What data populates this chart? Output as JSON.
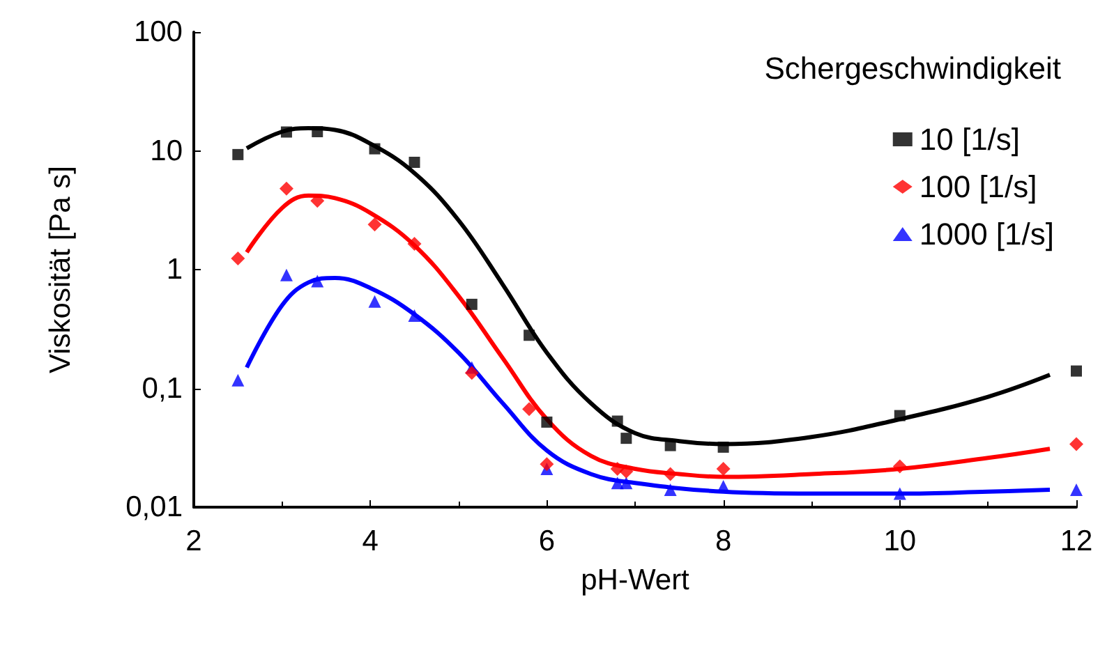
{
  "chart_data": {
    "type": "scatter",
    "xlabel": "pH-Wert",
    "ylabel": "Viskosität [Pa s]",
    "legend_title": "Schergeschwindigkeit",
    "legend": "top right",
    "log": "y",
    "grid": false,
    "xlim": [
      2,
      12
    ],
    "xticks": [
      2,
      4,
      6,
      8,
      10,
      12
    ],
    "ylim": [
      0.01,
      100
    ],
    "yticks": [
      {
        "value": 0.01,
        "label": "0,01"
      },
      {
        "value": 0.1,
        "label": "0,1"
      },
      {
        "value": 1,
        "label": "1"
      },
      {
        "value": 10,
        "label": "10"
      },
      {
        "value": 100,
        "label": "100"
      }
    ],
    "series": [
      {
        "name": "10 [1/s]",
        "color": "#000000",
        "marker": "square",
        "x": [
          2.5,
          3.05,
          3.4,
          4.05,
          4.5,
          5.15,
          5.8,
          6,
          6.8,
          6.9,
          7.4,
          8,
          10,
          12
        ],
        "values": [
          9.3,
          14.4,
          14.5,
          10.4,
          8,
          0.51,
          0.28,
          0.052,
          0.053,
          0.038,
          0.033,
          0.032,
          0.059,
          0.14
        ]
      },
      {
        "name": "100 [1/s]",
        "color": "#ff0000",
        "marker": "diamond",
        "x": [
          2.5,
          3.05,
          3.4,
          4.05,
          4.5,
          5.15,
          5.8,
          6,
          6.8,
          6.9,
          7.4,
          8,
          10,
          12
        ],
        "values": [
          1.24,
          4.8,
          3.8,
          2.4,
          1.65,
          0.135,
          0.067,
          0.023,
          0.021,
          0.02,
          0.019,
          0.021,
          0.022,
          0.034
        ]
      },
      {
        "name": "1000 [1/s]",
        "color": "#0000ff",
        "marker": "triangle",
        "x": [
          2.5,
          3.05,
          3.4,
          4.05,
          4.5,
          5.15,
          6,
          6.8,
          6.9,
          7.4,
          8,
          10,
          12
        ],
        "values": [
          0.117,
          0.9,
          0.8,
          0.54,
          0.41,
          0.15,
          0.021,
          0.016,
          0.016,
          0.014,
          0.015,
          0.013,
          0.014
        ]
      },
      {
        "type": "line",
        "color": "#000000",
        "marker": "none",
        "x": [
          2.6,
          3,
          3.3,
          3.6,
          4,
          4.5,
          5,
          5.5,
          6,
          6.5,
          7,
          7.5,
          8,
          9,
          10,
          11,
          11.7
        ],
        "values": [
          10.5,
          14.5,
          15.5,
          15,
          11.5,
          6.5,
          2.6,
          0.75,
          0.2,
          0.075,
          0.042,
          0.036,
          0.034,
          0.039,
          0.055,
          0.085,
          0.13
        ]
      },
      {
        "type": "line",
        "color": "#ff0000",
        "marker": "none",
        "x": [
          2.6,
          3,
          3.3,
          3.6,
          4,
          4.5,
          5,
          5.5,
          6,
          6.5,
          7,
          7.5,
          8,
          9,
          10,
          11,
          11.7
        ],
        "values": [
          1.4,
          3.3,
          4.2,
          4,
          3,
          1.6,
          0.6,
          0.18,
          0.055,
          0.027,
          0.021,
          0.019,
          0.018,
          0.019,
          0.021,
          0.026,
          0.031
        ]
      },
      {
        "type": "line",
        "color": "#0000ff",
        "marker": "none",
        "x": [
          2.6,
          3,
          3.3,
          3.6,
          4,
          4.5,
          5,
          5.5,
          6,
          6.5,
          7,
          8,
          9,
          10,
          11,
          11.7
        ],
        "values": [
          0.15,
          0.5,
          0.78,
          0.85,
          0.7,
          0.42,
          0.2,
          0.075,
          0.03,
          0.019,
          0.016,
          0.0135,
          0.013,
          0.013,
          0.0135,
          0.014
        ]
      }
    ]
  }
}
